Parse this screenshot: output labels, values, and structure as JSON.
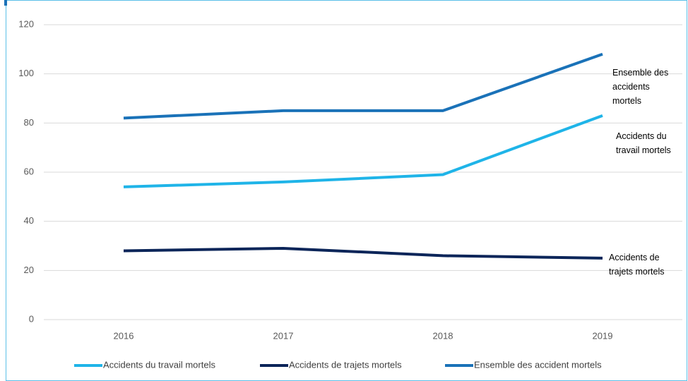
{
  "chart_data": {
    "type": "line",
    "categories": [
      "2016",
      "2017",
      "2018",
      "2019"
    ],
    "series": [
      {
        "name": "Accidents du travail mortels",
        "color": "#1fb4e8",
        "values": [
          54,
          56,
          59,
          83
        ]
      },
      {
        "name": "Accidents de trajets mortels",
        "color": "#0b2559",
        "values": [
          28,
          29,
          26,
          25
        ]
      },
      {
        "name": "Ensemble des accident mortels",
        "color": "#1a72b8",
        "values": [
          82,
          85,
          85,
          108
        ]
      }
    ],
    "annotations": [
      [
        "Ensemble des",
        "accidents",
        "mortels"
      ],
      [
        "Accidents du",
        "travail mortels"
      ],
      [
        "Accidents de",
        "trajets mortels"
      ]
    ],
    "ylim": [
      0,
      120
    ],
    "yticks": [
      0,
      20,
      40,
      60,
      80,
      100,
      120
    ],
    "grid": true,
    "legend": "bottom"
  }
}
